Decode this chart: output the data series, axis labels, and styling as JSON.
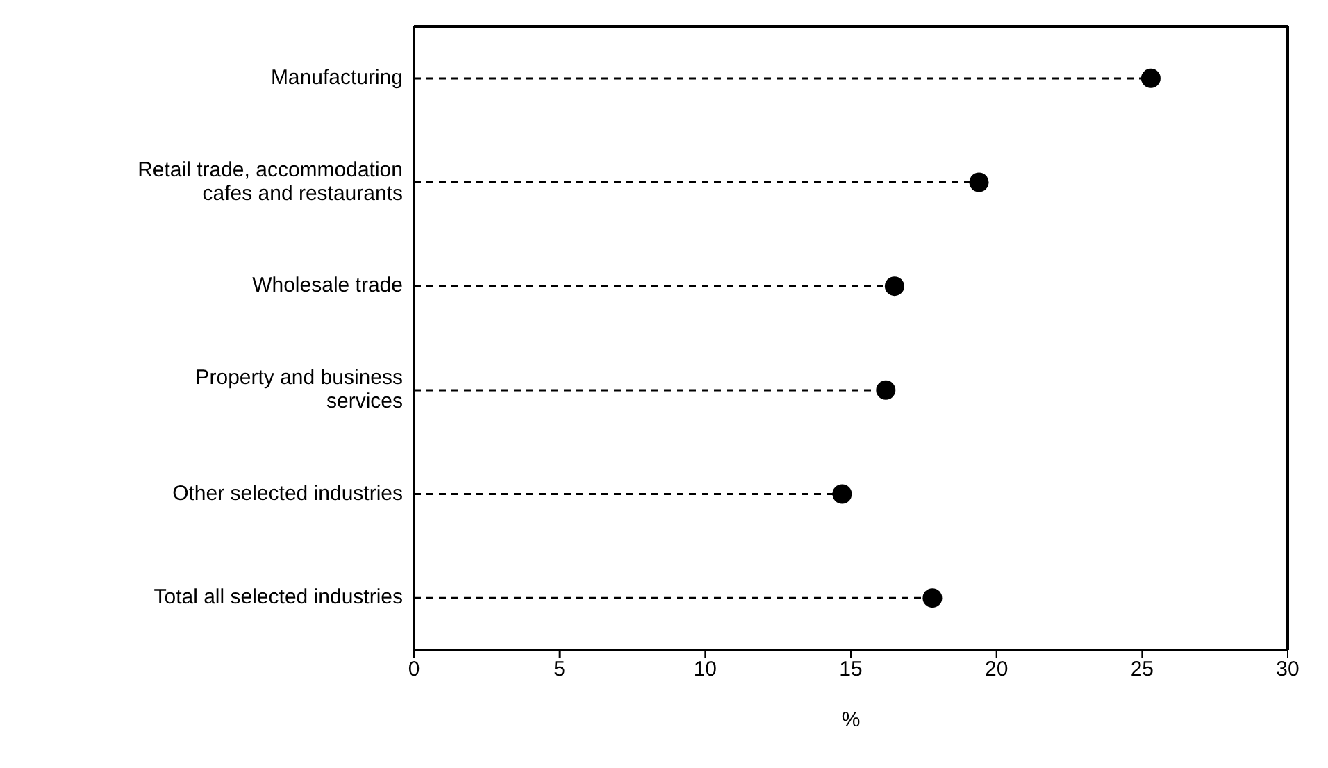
{
  "chart_data": {
    "type": "lollipop",
    "orientation": "horizontal",
    "xlabel": "%",
    "categories": [
      "Manufacturing",
      "Retail trade, accommodation cafes and restaurants",
      "Wholesale trade",
      "Property and business services",
      "Other selected industries",
      "Total all selected industries"
    ],
    "values": [
      25.3,
      19.4,
      16.5,
      16.2,
      14.7,
      17.8
    ],
    "color": "#000000",
    "xlim": [
      0,
      30
    ],
    "xticks": [
      0,
      5,
      10,
      15,
      20,
      25,
      30
    ],
    "marker": "circle",
    "line_style": "dashed"
  }
}
